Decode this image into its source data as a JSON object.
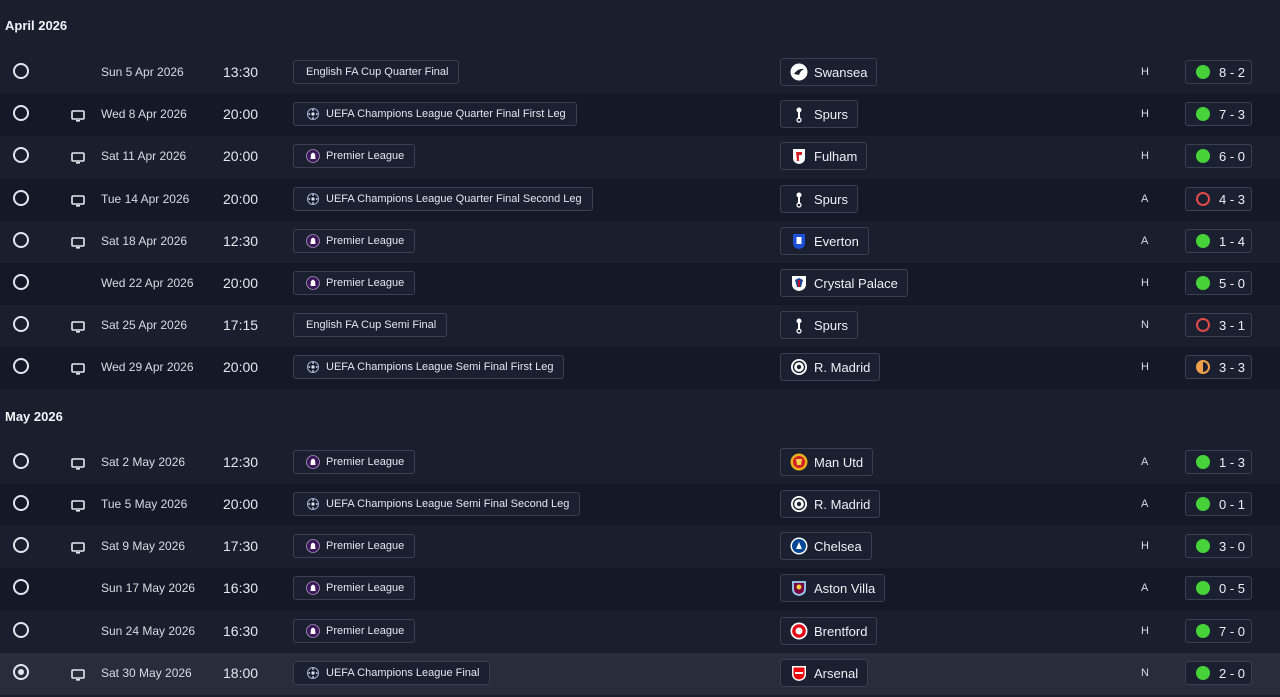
{
  "colors": {
    "background": "#1a1f2e",
    "row_alt": "#141927",
    "win": "#47d23a",
    "loss": "#e24a4a",
    "draw": "#f0a04a"
  },
  "months": [
    {
      "label": "April 2026",
      "fixtures": [
        {
          "date": "Sun 5 Apr 2026",
          "time": "13:30",
          "competition": "English FA Cup Quarter Final",
          "comp_icon": "none",
          "opponent": "Swansea",
          "badge": "swansea-badge-icon",
          "venue": "H",
          "result": "win",
          "score": "8 - 2",
          "tv": false,
          "selected": false
        },
        {
          "date": "Wed 8 Apr 2026",
          "time": "20:00",
          "competition": "UEFA Champions League Quarter Final First Leg",
          "comp_icon": "ucl-starball-icon",
          "opponent": "Spurs",
          "badge": "spurs-badge-icon",
          "venue": "H",
          "result": "win",
          "score": "7 - 3",
          "tv": true,
          "selected": false
        },
        {
          "date": "Sat 11 Apr 2026",
          "time": "20:00",
          "competition": "Premier League",
          "comp_icon": "premier-league-lion-icon",
          "opponent": "Fulham",
          "badge": "fulham-badge-icon",
          "venue": "H",
          "result": "win",
          "score": "6 - 0",
          "tv": true,
          "selected": false
        },
        {
          "date": "Tue 14 Apr 2026",
          "time": "20:00",
          "competition": "UEFA Champions League Quarter Final Second Leg",
          "comp_icon": "ucl-starball-icon",
          "opponent": "Spurs",
          "badge": "spurs-badge-icon",
          "venue": "A",
          "result": "loss",
          "score": "4 - 3",
          "tv": true,
          "selected": false
        },
        {
          "date": "Sat 18 Apr 2026",
          "time": "12:30",
          "competition": "Premier League",
          "comp_icon": "premier-league-lion-icon",
          "opponent": "Everton",
          "badge": "everton-badge-icon",
          "venue": "A",
          "result": "win",
          "score": "1 - 4",
          "tv": true,
          "selected": false
        },
        {
          "date": "Wed 22 Apr 2026",
          "time": "20:00",
          "competition": "Premier League",
          "comp_icon": "premier-league-lion-icon",
          "opponent": "Crystal Palace",
          "badge": "crystal-palace-badge-icon",
          "venue": "H",
          "result": "win",
          "score": "5 - 0",
          "tv": false,
          "selected": false
        },
        {
          "date": "Sat 25 Apr 2026",
          "time": "17:15",
          "competition": "English FA Cup Semi Final",
          "comp_icon": "none",
          "opponent": "Spurs",
          "badge": "spurs-badge-icon",
          "venue": "N",
          "result": "loss",
          "score": "3 - 1",
          "tv": true,
          "selected": false
        },
        {
          "date": "Wed 29 Apr 2026",
          "time": "20:00",
          "competition": "UEFA Champions League Semi Final First Leg",
          "comp_icon": "ucl-starball-icon",
          "opponent": "R. Madrid",
          "badge": "real-madrid-badge-icon",
          "venue": "H",
          "result": "draw",
          "score": "3 - 3",
          "tv": true,
          "selected": false
        }
      ]
    },
    {
      "label": "May 2026",
      "fixtures": [
        {
          "date": "Sat 2 May 2026",
          "time": "12:30",
          "competition": "Premier League",
          "comp_icon": "premier-league-lion-icon",
          "opponent": "Man Utd",
          "badge": "man-utd-badge-icon",
          "venue": "A",
          "result": "win",
          "score": "1 - 3",
          "tv": true,
          "selected": false
        },
        {
          "date": "Tue 5 May 2026",
          "time": "20:00",
          "competition": "UEFA Champions League Semi Final Second Leg",
          "comp_icon": "ucl-starball-icon",
          "opponent": "R. Madrid",
          "badge": "real-madrid-badge-icon",
          "venue": "A",
          "result": "win",
          "score": "0 - 1",
          "tv": true,
          "selected": false
        },
        {
          "date": "Sat 9 May 2026",
          "time": "17:30",
          "competition": "Premier League",
          "comp_icon": "premier-league-lion-icon",
          "opponent": "Chelsea",
          "badge": "chelsea-badge-icon",
          "venue": "H",
          "result": "win",
          "score": "3 - 0",
          "tv": true,
          "selected": false
        },
        {
          "date": "Sun 17 May 2026",
          "time": "16:30",
          "competition": "Premier League",
          "comp_icon": "premier-league-lion-icon",
          "opponent": "Aston Villa",
          "badge": "aston-villa-badge-icon",
          "venue": "A",
          "result": "win",
          "score": "0 - 5",
          "tv": false,
          "selected": false
        },
        {
          "date": "Sun 24 May 2026",
          "time": "16:30",
          "competition": "Premier League",
          "comp_icon": "premier-league-lion-icon",
          "opponent": "Brentford",
          "badge": "brentford-badge-icon",
          "venue": "H",
          "result": "win",
          "score": "7 - 0",
          "tv": false,
          "selected": false
        },
        {
          "date": "Sat 30 May 2026",
          "time": "18:00",
          "competition": "UEFA Champions League Final",
          "comp_icon": "ucl-starball-icon",
          "opponent": "Arsenal",
          "badge": "arsenal-badge-icon",
          "venue": "N",
          "result": "win",
          "score": "2 - 0",
          "tv": true,
          "selected": true
        }
      ]
    }
  ]
}
